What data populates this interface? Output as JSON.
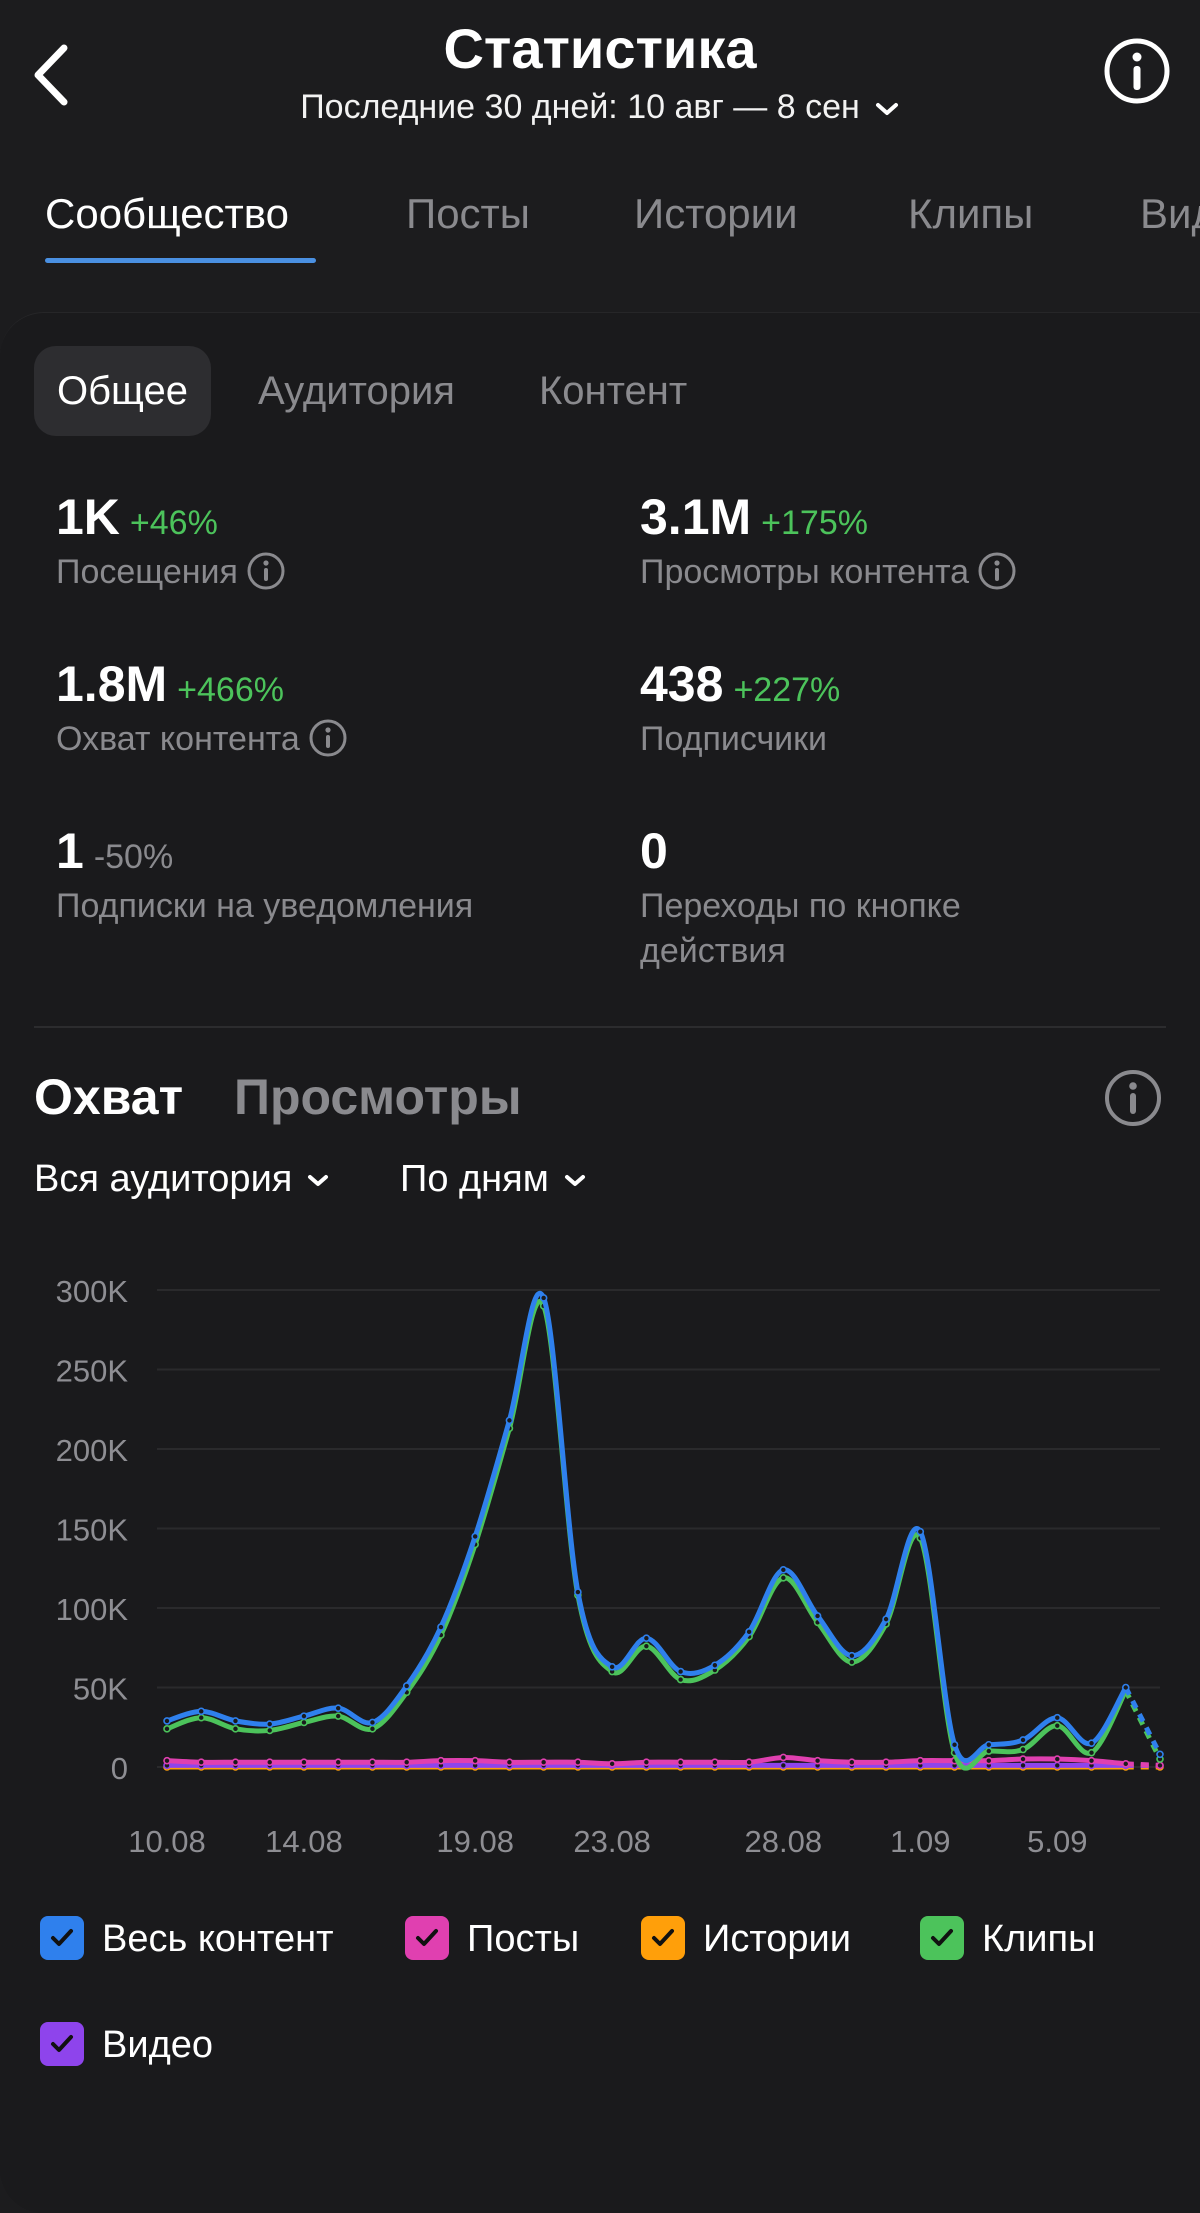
{
  "header": {
    "title": "Статистика",
    "period": "Последние 30 дней: 10 авг — 8 сен"
  },
  "tabs": [
    {
      "label": "Сообщество"
    },
    {
      "label": "Посты"
    },
    {
      "label": "Истории"
    },
    {
      "label": "Клипы"
    },
    {
      "label": "Вид"
    }
  ],
  "subtabs": [
    {
      "label": "Общее"
    },
    {
      "label": "Аудитория"
    },
    {
      "label": "Контент"
    }
  ],
  "metrics": [
    {
      "value": "1K",
      "delta": "+46%",
      "label": "Посещения"
    },
    {
      "value": "3.1M",
      "delta": "+175%",
      "label": "Просмотры контента"
    },
    {
      "value": "1.8M",
      "delta": "+466%",
      "label": "Охват контента"
    },
    {
      "value": "438",
      "delta": "+227%",
      "label": "Подписчики"
    },
    {
      "value": "1",
      "delta": "-50%",
      "label": "Подписки на уведомления"
    },
    {
      "value": "0",
      "label_line1": "Переходы по кнопке",
      "label_line2": "действия"
    }
  ],
  "chart_section": {
    "tab_reach": "Охват",
    "tab_views": "Просмотры",
    "dropdown_audience": "Вся аудитория",
    "dropdown_period": "По дням"
  },
  "colors": {
    "all_content": "#2f80ed",
    "posts": "#e040b0",
    "stories": "#ff9f0a",
    "clips": "#4cc35b",
    "video": "#8e44ec",
    "positive": "#4cc35b",
    "accent": "#4a90e2"
  },
  "chart_data": {
    "type": "line",
    "x": [
      "10.08",
      "11.08",
      "12.08",
      "13.08",
      "14.08",
      "15.08",
      "16.08",
      "17.08",
      "18.08",
      "19.08",
      "20.08",
      "21.08",
      "22.08",
      "23.08",
      "24.08",
      "25.08",
      "26.08",
      "27.08",
      "28.08",
      "29.08",
      "30.08",
      "31.08",
      "1.09",
      "2.09",
      "3.09",
      "4.09",
      "5.09",
      "6.09",
      "7.09",
      "8.09"
    ],
    "x_tick_labels": [
      "10.08",
      "14.08",
      "19.08",
      "23.08",
      "28.08",
      "1.09",
      "5.09"
    ],
    "y_ticks": [
      "300K",
      "250K",
      "200K",
      "150K",
      "100K",
      "50K",
      "0"
    ],
    "ylim": [
      0,
      300000
    ],
    "grid": true,
    "last_point_partial": true,
    "series": [
      {
        "name": "Весь контент",
        "color": "#2f80ed",
        "values": [
          29000,
          35000,
          29000,
          27000,
          32000,
          37000,
          28000,
          51000,
          88000,
          145000,
          218000,
          295000,
          110000,
          63000,
          81000,
          60000,
          64000,
          85000,
          124000,
          95000,
          70000,
          93000,
          148000,
          14000,
          14000,
          17000,
          31000,
          15000,
          50000,
          8000
        ]
      },
      {
        "name": "Клипы",
        "color": "#4cc35b",
        "values": [
          24000,
          31000,
          24000,
          23000,
          28000,
          32000,
          24000,
          47000,
          83000,
          140000,
          213000,
          290000,
          108000,
          60000,
          76000,
          55000,
          61000,
          82000,
          119000,
          91000,
          66000,
          90000,
          144000,
          9000,
          10000,
          11000,
          26000,
          9000,
          48000,
          5000
        ]
      },
      {
        "name": "Посты",
        "color": "#e040b0",
        "values": [
          4000,
          3000,
          3000,
          3000,
          3000,
          3000,
          3000,
          3000,
          4000,
          4000,
          3000,
          3000,
          3000,
          2000,
          3000,
          3000,
          3000,
          3000,
          6000,
          4000,
          3000,
          3000,
          4000,
          4000,
          4000,
          5000,
          5000,
          4000,
          2000,
          1000
        ]
      },
      {
        "name": "Истории",
        "color": "#ff9f0a",
        "values": [
          0,
          0,
          0,
          0,
          0,
          0,
          0,
          0,
          0,
          0,
          0,
          0,
          0,
          0,
          0,
          0,
          0,
          0,
          0,
          0,
          0,
          0,
          0,
          0,
          0,
          0,
          0,
          0,
          0,
          0
        ]
      },
      {
        "name": "Видео",
        "color": "#8e44ec",
        "values": [
          1000,
          1000,
          1000,
          1000,
          1000,
          1000,
          1000,
          1000,
          1000,
          1000,
          1000,
          1000,
          1000,
          1000,
          1000,
          1000,
          1000,
          1000,
          1000,
          1000,
          1000,
          1000,
          1000,
          1000,
          1000,
          1000,
          1000,
          1000,
          1000,
          1000
        ]
      }
    ]
  },
  "legend": [
    {
      "label": "Весь контент",
      "checked": true,
      "color": "#2f80ed"
    },
    {
      "label": "Посты",
      "checked": true,
      "color": "#e040b0"
    },
    {
      "label": "Истории",
      "checked": true,
      "color": "#ff9f0a"
    },
    {
      "label": "Клипы",
      "checked": true,
      "color": "#4cc35b"
    },
    {
      "label": "Видео",
      "checked": true,
      "color": "#8e44ec"
    }
  ]
}
